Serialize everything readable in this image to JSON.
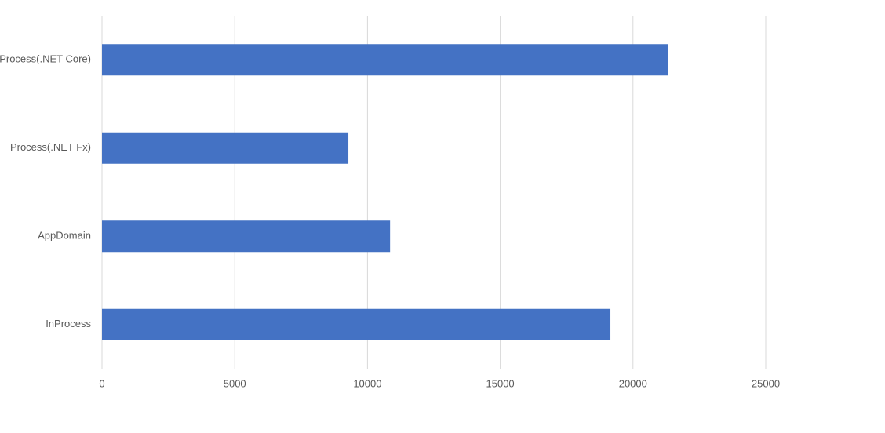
{
  "chart_data": {
    "type": "hbar",
    "categories": [
      "Process(.NET Core)",
      "Process(.NET Fx)",
      "AppDomain",
      "InProcess"
    ],
    "values": [
      21330,
      9280,
      10850,
      19150
    ],
    "color": "#4472c4",
    "xlim": [
      0,
      25000
    ],
    "xticks": [
      0,
      5000,
      10000,
      15000,
      20000,
      25000
    ],
    "grid": true
  }
}
